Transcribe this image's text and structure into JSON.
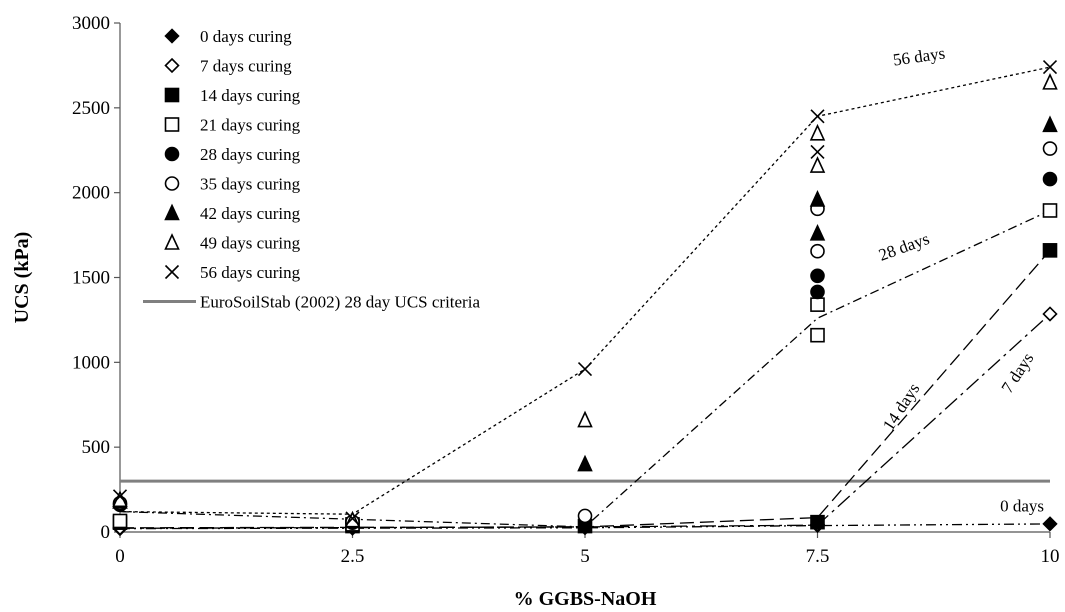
{
  "chart_data": {
    "type": "scatter",
    "title": "",
    "xlabel": "% GGBS-NaOH",
    "ylabel": "UCS (kPa)",
    "xlim": [
      0,
      10
    ],
    "ylim": [
      0,
      3000
    ],
    "x_ticks": [
      "0",
      "2.5",
      "5",
      "7.5",
      "10"
    ],
    "y_ticks": [
      "0",
      "500",
      "1000",
      "1500",
      "2000",
      "2500",
      "3000"
    ],
    "grid": false,
    "legend_position": "top-left",
    "series": [
      {
        "name": "0 days curing",
        "marker": "diamond-filled",
        "points": [
          [
            0,
            20
          ],
          [
            2.5,
            22
          ],
          [
            5,
            25
          ],
          [
            7.5,
            38
          ],
          [
            10,
            48
          ]
        ]
      },
      {
        "name": "7 days curing",
        "marker": "diamond-open",
        "points": [
          [
            0,
            25
          ],
          [
            2.5,
            28
          ],
          [
            5,
            30
          ],
          [
            7.5,
            45
          ],
          [
            10,
            1285
          ]
        ]
      },
      {
        "name": "14 days curing",
        "marker": "square-filled",
        "points": [
          [
            0,
            55
          ],
          [
            2.5,
            35
          ],
          [
            5,
            35
          ],
          [
            7.5,
            58
          ],
          [
            10,
            1660
          ]
        ]
      },
      {
        "name": "21 days curing",
        "marker": "square-open",
        "points": [
          [
            0,
            65
          ],
          [
            2.5,
            45
          ],
          [
            7.5,
            1160
          ],
          [
            7.5,
            1340
          ],
          [
            10,
            1895
          ]
        ]
      },
      {
        "name": "28 days curing",
        "marker": "circle-filled",
        "points": [
          [
            0,
            160
          ],
          [
            2.5,
            55
          ],
          [
            7.5,
            1415
          ],
          [
            7.5,
            1510
          ],
          [
            10,
            2080
          ]
        ]
      },
      {
        "name": "35 days curing",
        "marker": "circle-open",
        "points": [
          [
            0,
            170
          ],
          [
            2.5,
            60
          ],
          [
            5,
            95
          ],
          [
            7.5,
            1655
          ],
          [
            7.5,
            1905
          ],
          [
            10,
            2260
          ]
        ]
      },
      {
        "name": "42 days curing",
        "marker": "triangle-filled",
        "points": [
          [
            0,
            180
          ],
          [
            2.5,
            65
          ],
          [
            5,
            400
          ],
          [
            7.5,
            1760
          ],
          [
            7.5,
            1960
          ],
          [
            10,
            2400
          ]
        ]
      },
      {
        "name": "49 days curing",
        "marker": "triangle-open",
        "points": [
          [
            0,
            190
          ],
          [
            2.5,
            70
          ],
          [
            5,
            660
          ],
          [
            7.5,
            2160
          ],
          [
            7.5,
            2350
          ],
          [
            10,
            2650
          ]
        ]
      },
      {
        "name": "56 days curing",
        "marker": "cross",
        "points": [
          [
            0,
            210
          ],
          [
            2.5,
            80
          ],
          [
            5,
            960
          ],
          [
            7.5,
            2240
          ],
          [
            7.5,
            2450
          ],
          [
            10,
            2740
          ]
        ]
      }
    ],
    "lines": [
      {
        "label": "56 days",
        "style": "dotted",
        "points": [
          [
            0,
            210
          ],
          [
            0,
            120
          ],
          [
            2.5,
            105
          ],
          [
            5,
            960
          ],
          [
            7.5,
            2450
          ],
          [
            10,
            2740
          ]
        ]
      },
      {
        "label": "28 days",
        "style": "dash-dot",
        "points": [
          [
            0,
            120
          ],
          [
            5,
            30
          ],
          [
            7.5,
            1260
          ],
          [
            10,
            1895
          ]
        ]
      },
      {
        "label": "14 days",
        "style": "long-dash",
        "points": [
          [
            0,
            25
          ],
          [
            5,
            30
          ],
          [
            7.5,
            85
          ],
          [
            10,
            1660
          ]
        ]
      },
      {
        "label": "7 days",
        "style": "long-dash-dot",
        "points": [
          [
            0,
            22
          ],
          [
            5,
            30
          ],
          [
            7.5,
            40
          ],
          [
            10,
            1285
          ]
        ]
      },
      {
        "label": "0 days",
        "style": "dash-dot-dot",
        "points": [
          [
            0,
            20
          ],
          [
            5,
            25
          ],
          [
            7.5,
            38
          ],
          [
            10,
            48
          ]
        ]
      }
    ],
    "criteria": {
      "name": "EuroSoilStab (2002) 28 day UCS criteria",
      "y": 300,
      "color": "#808080"
    }
  }
}
